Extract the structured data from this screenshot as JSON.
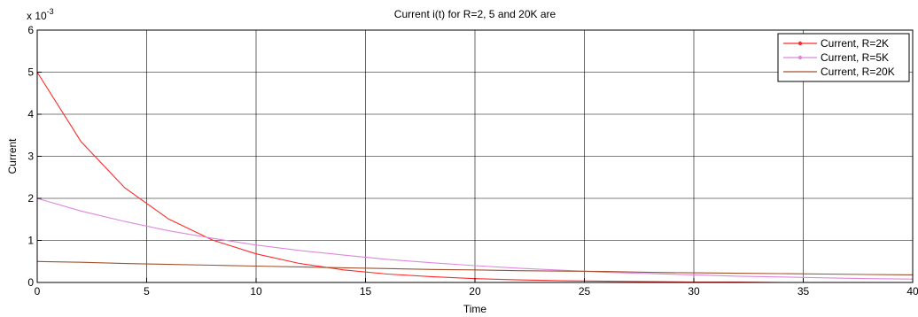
{
  "chart_data": {
    "type": "line",
    "title": "Current i(t) for R=2, 5 and 20K are",
    "xlabel": "Time",
    "ylabel": "Current",
    "y_exponent_base": "x 10",
    "y_exponent_power": "-3",
    "xlim": [
      0,
      40
    ],
    "ylim": [
      0,
      6
    ],
    "xticks": [
      0,
      5,
      10,
      15,
      20,
      25,
      30,
      35,
      40
    ],
    "yticks": [
      0,
      1,
      2,
      3,
      4,
      5,
      6
    ],
    "grid": true,
    "legend_position": "top-right",
    "series": [
      {
        "name": "Current, R=2K",
        "color": "#ff2a2a",
        "marker": "dot",
        "x": [
          0,
          2,
          4,
          6,
          8,
          10,
          12,
          14,
          16,
          18,
          20,
          22,
          24,
          26,
          28,
          30,
          32,
          34,
          36,
          38,
          40
        ],
        "y": [
          5.0,
          3.35,
          2.25,
          1.51,
          1.01,
          0.68,
          0.45,
          0.3,
          0.2,
          0.14,
          0.09,
          0.06,
          0.04,
          0.03,
          0.02,
          0.01,
          0.01,
          0.0,
          0.0,
          0.0,
          0.0
        ]
      },
      {
        "name": "Current, R=5K",
        "color": "#dd88dd",
        "marker": "dot",
        "x": [
          0,
          2,
          4,
          6,
          8,
          10,
          12,
          14,
          16,
          18,
          20,
          22,
          24,
          26,
          28,
          30,
          32,
          34,
          36,
          38,
          40
        ],
        "y": [
          2.0,
          1.7,
          1.45,
          1.23,
          1.05,
          0.89,
          0.76,
          0.65,
          0.55,
          0.47,
          0.4,
          0.34,
          0.29,
          0.24,
          0.21,
          0.18,
          0.15,
          0.13,
          0.11,
          0.09,
          0.08
        ]
      },
      {
        "name": "Current, R=20K",
        "color": "#a0522d",
        "marker": "none",
        "x": [
          0,
          2,
          4,
          6,
          8,
          10,
          12,
          14,
          16,
          18,
          20,
          22,
          24,
          26,
          28,
          30,
          32,
          34,
          36,
          38,
          40
        ],
        "y": [
          0.5,
          0.48,
          0.45,
          0.43,
          0.41,
          0.39,
          0.37,
          0.35,
          0.33,
          0.31,
          0.3,
          0.28,
          0.27,
          0.26,
          0.24,
          0.23,
          0.22,
          0.21,
          0.2,
          0.19,
          0.18
        ]
      }
    ]
  }
}
